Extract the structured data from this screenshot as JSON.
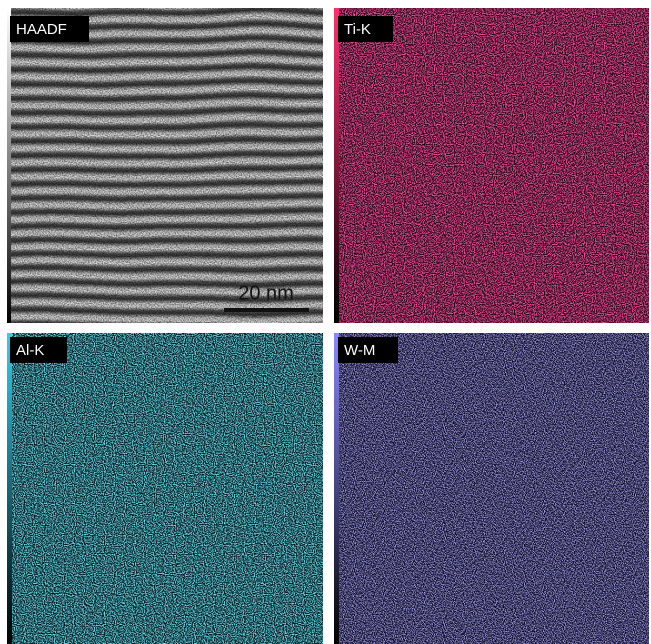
{
  "panels": [
    {
      "label": "HAADF"
    },
    {
      "label": "Ti-K"
    },
    {
      "label": "Al-K"
    },
    {
      "label": "W-M"
    }
  ],
  "scale_bar": "20 nm"
}
